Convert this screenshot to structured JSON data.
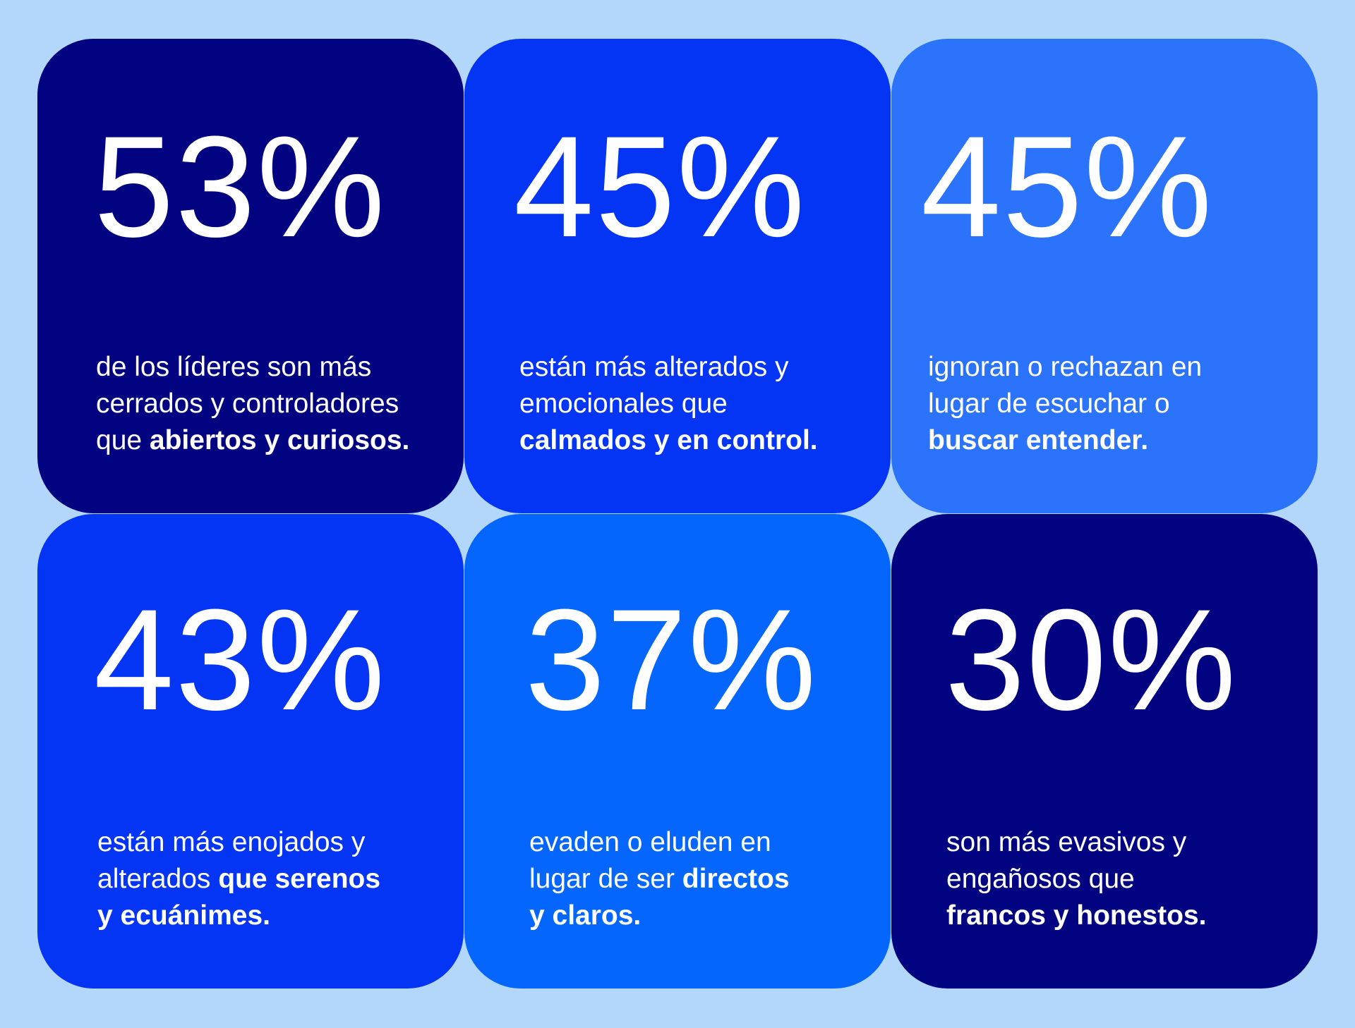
{
  "background": "#b3d7fb",
  "cards": [
    {
      "color": "#020381",
      "stat": "53%",
      "line1": "de los líderes son más",
      "line2": "cerrados y controladores",
      "line3_plain": "que ",
      "line3_bold": "abiertos y curiosos."
    },
    {
      "color": "#0434f4",
      "stat": "45%",
      "line1": "están más alterados y",
      "line2": "emocionales que",
      "line3_plain": "",
      "line3_bold": "calmados y en control."
    },
    {
      "color": "#2c73fc",
      "stat": "45%",
      "line1": "ignoran o rechazan en",
      "line2": "lugar de escuchar o",
      "line3_plain": "",
      "line3_bold": "buscar entender."
    },
    {
      "color": "#0434f4",
      "stat": "43%",
      "line1": "están más enojados y",
      "line2_plain": "alterados ",
      "line2_bold": "que serenos",
      "line3_bold": "y ecuánimes."
    },
    {
      "color": "#0466fc",
      "stat": "37%",
      "line1": "evaden o eluden en",
      "line2_plain": "lugar de ser ",
      "line2_bold": "directos",
      "line3_bold": "y claros."
    },
    {
      "color": "#020381",
      "stat": "30%",
      "line1": "son más evasivos y",
      "line2": "engañosos que",
      "line3_plain": "",
      "line3_bold": "francos y honestos."
    }
  ]
}
